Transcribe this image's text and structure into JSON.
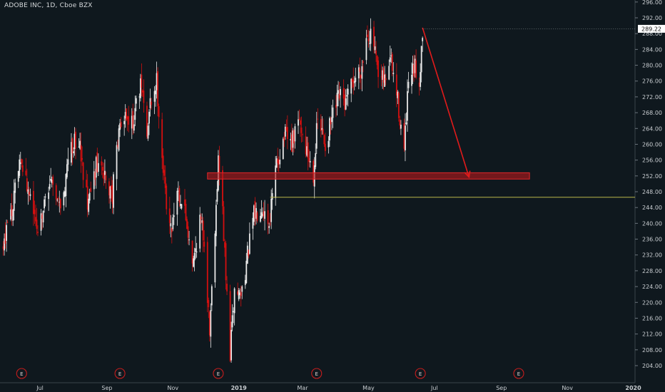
{
  "header": {
    "title": "ADOBE INC, 1D, Cboe BZX"
  },
  "theme": {
    "background": "#0f181e",
    "up_color": "#e8e8e8",
    "down_color": "#d40f0f",
    "zone_color": "#b3191c",
    "level_line_color": "#b9b64a",
    "arrow_color": "#e21b1b",
    "price_tag_bg": "#ffffff",
    "earnings_marker_color": "#c51d1d"
  },
  "chart_data": {
    "type": "candlestick",
    "title": "ADOBE INC, 1D, Cboe BZX",
    "y_axis": {
      "ticks": [
        "296.00",
        "292.00",
        "288.00",
        "284.00",
        "280.00",
        "276.00",
        "272.00",
        "268.00",
        "264.00",
        "260.00",
        "256.00",
        "252.00",
        "248.00",
        "244.00",
        "240.00",
        "236.00",
        "232.00",
        "228.00",
        "224.00",
        "220.00",
        "216.00",
        "212.00",
        "208.00",
        "204.00"
      ],
      "range": [
        202,
        297
      ]
    },
    "x_axis": {
      "labels": [
        "Jul",
        "Sep",
        "Nov",
        "2019",
        "Mar",
        "May",
        "Jul",
        "Sep",
        "Nov",
        "2020"
      ],
      "bold_labels": [
        "2019",
        "2020"
      ]
    },
    "last_price": "289.22",
    "waypoints": [
      [
        "2018-05-28",
        234
      ],
      [
        "2018-06-05",
        243
      ],
      [
        "2018-06-14",
        257
      ],
      [
        "2018-06-20",
        248
      ],
      [
        "2018-06-28",
        239
      ],
      [
        "2018-07-05",
        245
      ],
      [
        "2018-07-12",
        252
      ],
      [
        "2018-07-19",
        243
      ],
      [
        "2018-07-25",
        251
      ],
      [
        "2018-08-02",
        262
      ],
      [
        "2018-08-07",
        259
      ],
      [
        "2018-08-15",
        244
      ],
      [
        "2018-08-22",
        255
      ],
      [
        "2018-08-30",
        251
      ],
      [
        "2018-09-06",
        247
      ],
      [
        "2018-09-11",
        262
      ],
      [
        "2018-09-17",
        268
      ],
      [
        "2018-09-24",
        265
      ],
      [
        "2018-09-28",
        270
      ],
      [
        "2018-10-03",
        275
      ],
      [
        "2018-10-08",
        262
      ],
      [
        "2018-10-11",
        270
      ],
      [
        "2018-10-17",
        276
      ],
      [
        "2018-10-24",
        250
      ],
      [
        "2018-10-30",
        238
      ],
      [
        "2018-11-05",
        249
      ],
      [
        "2018-11-12",
        243
      ],
      [
        "2018-11-20",
        230
      ],
      [
        "2018-11-26",
        241
      ],
      [
        "2018-11-30",
        236
      ],
      [
        "2018-12-05",
        213
      ],
      [
        "2018-12-10",
        240
      ],
      [
        "2018-12-13",
        256
      ],
      [
        "2018-12-17",
        243
      ],
      [
        "2018-12-20",
        226
      ],
      [
        "2018-12-24",
        207
      ],
      [
        "2018-12-28",
        223
      ],
      [
        "2019-01-03",
        222
      ],
      [
        "2019-01-08",
        230
      ],
      [
        "2019-01-15",
        242
      ],
      [
        "2019-01-22",
        245
      ],
      [
        "2019-01-29",
        240
      ],
      [
        "2019-02-05",
        255
      ],
      [
        "2019-02-12",
        262
      ],
      [
        "2019-02-19",
        260
      ],
      [
        "2019-02-26",
        266
      ],
      [
        "2019-03-05",
        258
      ],
      [
        "2019-03-11",
        253
      ],
      [
        "2019-03-15",
        266
      ],
      [
        "2019-03-22",
        260
      ],
      [
        "2019-03-28",
        266
      ],
      [
        "2019-04-04",
        272
      ],
      [
        "2019-04-10",
        270
      ],
      [
        "2019-04-17",
        276
      ],
      [
        "2019-04-25",
        280
      ],
      [
        "2019-04-30",
        289
      ],
      [
        "2019-05-06",
        285
      ],
      [
        "2019-05-10",
        276
      ],
      [
        "2019-05-16",
        276
      ],
      [
        "2019-05-21",
        282
      ],
      [
        "2019-05-28",
        271
      ],
      [
        "2019-06-03",
        258
      ],
      [
        "2019-06-07",
        275
      ],
      [
        "2019-06-13",
        279
      ],
      [
        "2019-06-17",
        276
      ],
      [
        "2019-06-20",
        289
      ]
    ],
    "earnings_dates": [
      "2018-06-14",
      "2018-09-13",
      "2018-12-13",
      "2019-03-14",
      "2019-06-18",
      "2019-09-17"
    ],
    "zone": {
      "x_start": "2018-12-03",
      "x_end": "2019-09-27",
      "y_low": 251.2,
      "y_high": 252.8
    },
    "level_line": {
      "x_start": "2019-01-30",
      "y": 246.6
    },
    "arrow": {
      "from": [
        "2019-06-20",
        289.5
      ],
      "to": [
        "2019-08-02",
        251.7
      ]
    },
    "last_price_tick": {
      "x": "2019-06-20",
      "y": 289.22
    }
  }
}
